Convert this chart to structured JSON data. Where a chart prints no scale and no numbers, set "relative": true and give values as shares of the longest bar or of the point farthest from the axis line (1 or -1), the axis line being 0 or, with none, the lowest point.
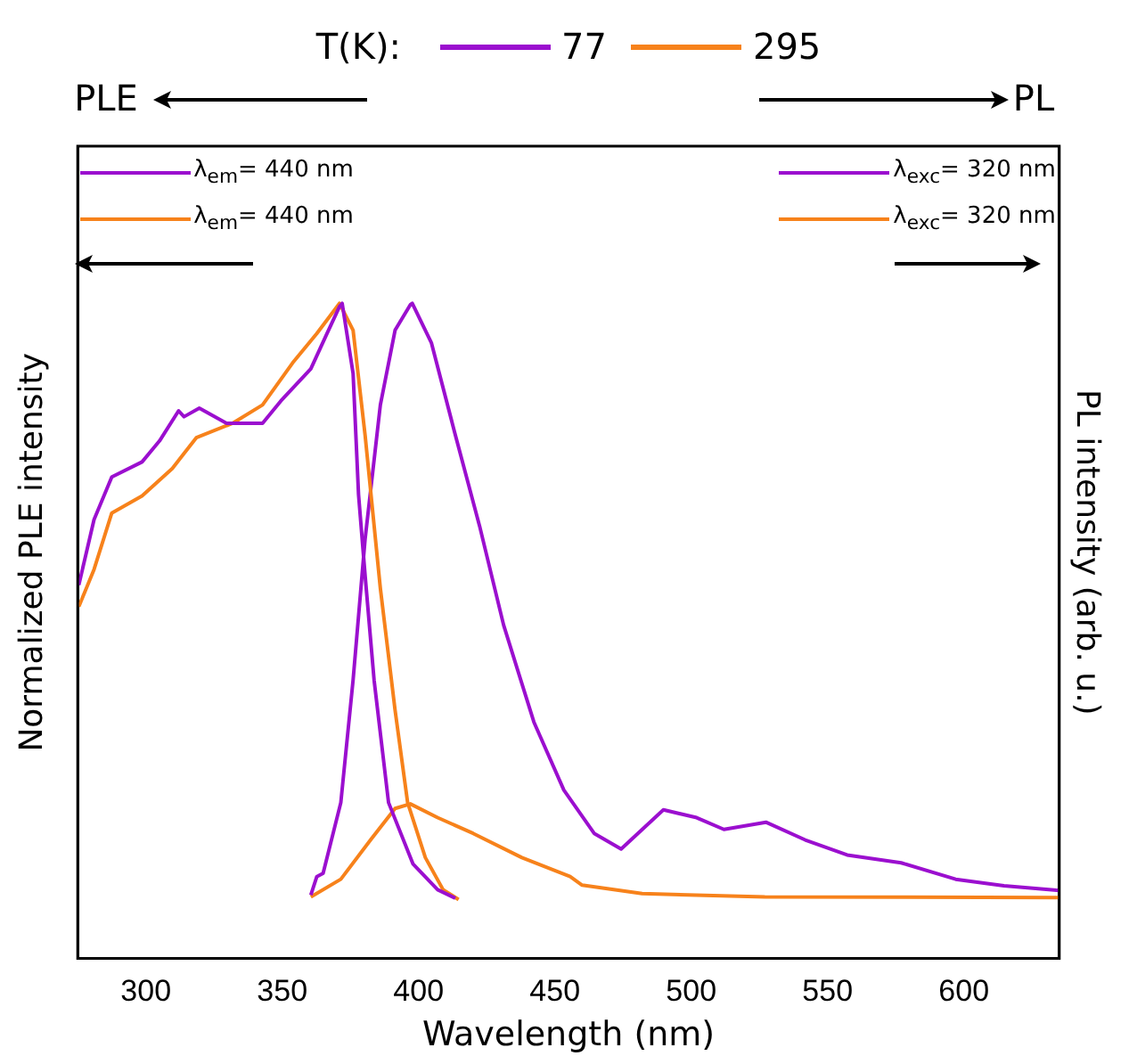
{
  "chart_data": {
    "type": "line",
    "relative": true,
    "xlabel": "Wavelength (nm)",
    "ylabel": "Normalized PLE intensity",
    "y2label": "PL intensity (arb. u.)",
    "legend_title": "T(K):",
    "legend": "top",
    "marker": "none",
    "line_style": "solid",
    "xlim": [
      275,
      635
    ],
    "xticks": [
      300,
      350,
      400,
      450,
      500,
      550,
      600
    ],
    "annotations": [
      "77",
      "295",
      "PLE",
      "PL"
    ],
    "series": [
      {
        "name": "λ$_{em}$= 440 nm",
        "color": "#9b0fcf",
        "x": [
          275.4,
          281,
          287.5,
          298.6,
          305,
          312,
          314,
          319.6,
          329.6,
          342.8,
          349.5,
          360.5,
          366,
          371,
          372,
          376,
          378,
          380.4,
          383.7,
          389,
          398,
          407,
          413.5
        ],
        "values": [
          0.57,
          0.67,
          0.735,
          0.758,
          0.79,
          0.836,
          0.827,
          0.84,
          0.817,
          0.817,
          0.851,
          0.9,
          0.95,
          0.995,
          1,
          0.893,
          0.708,
          0.585,
          0.425,
          0.238,
          0.144,
          0.105,
          0.092
        ]
      },
      {
        "name": "λ$_{em}$= 440 nm",
        "color": "#f7821b",
        "x": [
          275.4,
          281,
          287.5,
          298.6,
          309.7,
          318.5,
          331.8,
          342.8,
          353.8,
          362.7,
          371,
          376,
          380.4,
          386,
          391.4,
          396,
          402.5,
          409,
          414.7
        ],
        "values": [
          0.537,
          0.594,
          0.68,
          0.706,
          0.748,
          0.795,
          0.817,
          0.845,
          0.909,
          0.954,
          1,
          0.959,
          0.799,
          0.565,
          0.379,
          0.238,
          0.154,
          0.105,
          0.09
        ]
      },
      {
        "name": "λ$_{exc}$= 320 nm",
        "color": "#9b0fcf",
        "axis": "y2",
        "x": [
          360.5,
          362.7,
          365,
          371.5,
          376,
          380.4,
          386,
          391.4,
          397,
          397.7,
          404.7,
          413.5,
          422.4,
          431.2,
          442.3,
          453.3,
          464.4,
          474.3,
          489.8,
          502,
          512,
          527.4,
          541.8,
          557.2,
          577,
          597,
          614.7,
          635
        ],
        "values": [
          0.097,
          0.125,
          0.13,
          0.238,
          0.425,
          0.64,
          0.845,
          0.959,
          0.998,
          1,
          0.94,
          0.799,
          0.66,
          0.509,
          0.361,
          0.257,
          0.191,
          0.167,
          0.227,
          0.215,
          0.197,
          0.208,
          0.181,
          0.158,
          0.146,
          0.121,
          0.111,
          0.104
        ]
      },
      {
        "name": "λ$_{exc}$= 320 nm",
        "color": "#f7821b",
        "axis": "y2",
        "x": [
          360.5,
          371.5,
          382.6,
          391.4,
          397,
          407,
          420,
          437.9,
          455.6,
          460,
          482,
          527,
          635
        ],
        "values": [
          0.094,
          0.121,
          0.182,
          0.229,
          0.236,
          0.215,
          0.191,
          0.154,
          0.125,
          0.112,
          0.099,
          0.094,
          0.093
        ]
      }
    ]
  }
}
